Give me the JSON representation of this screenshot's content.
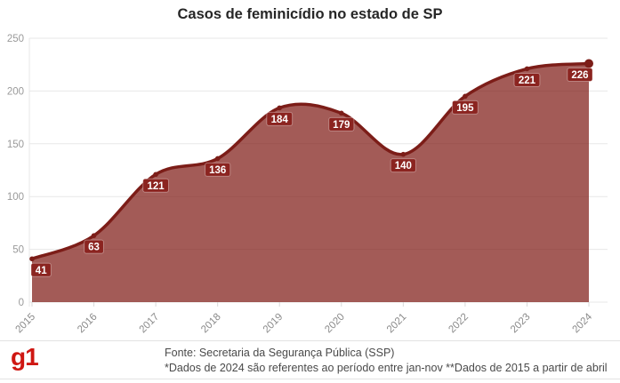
{
  "title": "Casos de feminicídio no estado de SP",
  "chart_data": {
    "type": "area",
    "categories": [
      "2015",
      "2016",
      "2017",
      "2018",
      "2019",
      "2020",
      "2021",
      "2022",
      "2023",
      "2024"
    ],
    "values": [
      41,
      63,
      121,
      136,
      184,
      179,
      140,
      195,
      221,
      226
    ],
    "title": "Casos de feminicídio no estado de SP",
    "xlabel": "",
    "ylabel": "",
    "ylim": [
      0,
      250
    ],
    "yticks": [
      0,
      50,
      100,
      150,
      200,
      250
    ],
    "grid": "horizontal",
    "legend": "none",
    "smooth": true,
    "data_labels": true
  },
  "colors": {
    "line": "#7c1d18",
    "fill": "rgba(124,22,16,0.70)",
    "label_bg": "#8b2420",
    "label_border": "rgba(255,255,255,0.35)",
    "label_text": "#ffffff",
    "grid": "#e7e7e7",
    "axis_line": "#e7e7e7",
    "tick": "#d9d9d9",
    "x_label": "#8a8a8a",
    "y_label": "#9a9a9a",
    "title_color": "#262626",
    "logo_color": "#cf1712",
    "footer_text": "#4a4a4a",
    "divider": "#e3e3e3"
  },
  "footer": {
    "logo": "g1",
    "source_line1": "Fonte: Secretaria da Segurança Pública (SSP)",
    "source_line2": "*Dados de 2024 são referentes ao período entre jan-nov **Dados de 2015 a partir de abril"
  }
}
